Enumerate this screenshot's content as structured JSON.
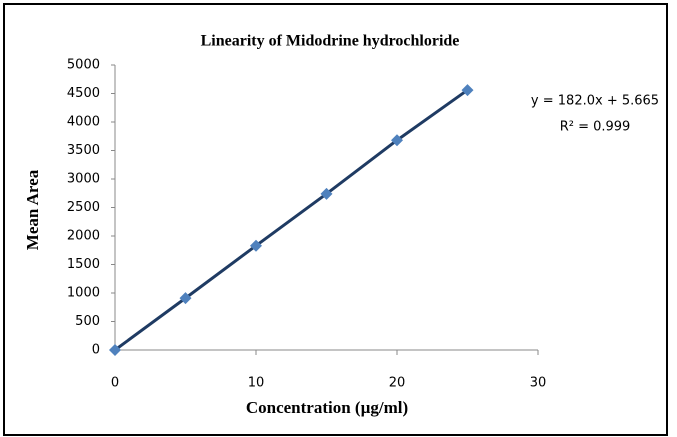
{
  "chart_data": {
    "type": "scatter",
    "title": "Linearity of Midodrine hydrochloride",
    "x_label": "Concentration (µg/ml)",
    "y_label": "Mean Area",
    "annotations": [
      "y = 182.0x + 5.665",
      "R² = 0.999"
    ],
    "x": [
      0,
      5,
      10,
      15,
      20,
      25
    ],
    "series": [
      {
        "color": "#4f81bd",
        "line_color": "#1f3b63",
        "values": [
          0,
          910,
          1830,
          2740,
          3680,
          4560
        ]
      }
    ],
    "xlim": [
      0,
      30
    ],
    "xticks": [
      0,
      10,
      20,
      30
    ],
    "ylim": [
      0,
      5000
    ],
    "yticks": [
      0,
      500,
      1000,
      1500,
      2000,
      2500,
      3000,
      3500,
      4000,
      4500,
      5000
    ],
    "line": true,
    "grid": false
  }
}
